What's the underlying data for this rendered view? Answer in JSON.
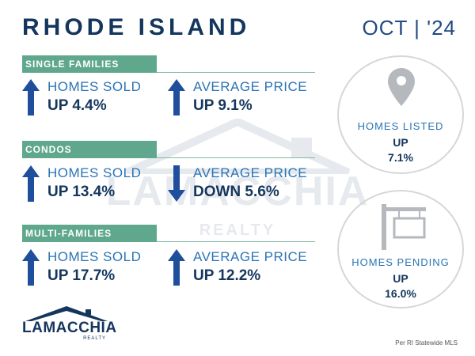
{
  "header": {
    "title": "RHODE ISLAND",
    "date": "OCT | '24"
  },
  "watermark": {
    "text": "LAMACCHIA",
    "sub": "REALTY"
  },
  "sections": [
    {
      "name": "SINGLE FAMILIES",
      "homes_sold": {
        "label": "HOMES SOLD",
        "value": "UP 4.4%",
        "direction": "up"
      },
      "avg_price": {
        "label": "AVERAGE PRICE",
        "value": "UP 9.1%",
        "direction": "up"
      }
    },
    {
      "name": "CONDOS",
      "homes_sold": {
        "label": "HOMES SOLD",
        "value": "UP 13.4%",
        "direction": "up"
      },
      "avg_price": {
        "label": "AVERAGE PRICE",
        "value": "DOWN 5.6%",
        "direction": "down"
      }
    },
    {
      "name": "MULTI-FAMILIES",
      "homes_sold": {
        "label": "HOMES SOLD",
        "value": "UP 17.7%",
        "direction": "up"
      },
      "avg_price": {
        "label": "AVERAGE PRICE",
        "value": "UP 12.2%",
        "direction": "up"
      }
    }
  ],
  "homes_listed": {
    "label": "HOMES LISTED",
    "direction": "UP",
    "value": "7.1%",
    "icon": "map-pin-icon"
  },
  "homes_pending": {
    "label": "HOMES PENDING",
    "direction": "UP",
    "value": "16.0%",
    "icon": "sale-sign-icon"
  },
  "logo": {
    "text": "LAMACCHIA",
    "sub": "REALTY"
  },
  "source": "Per RI Statewide MLS",
  "colors": {
    "navy": "#14365d",
    "blue": "#2a74b5",
    "green": "#5fa88d",
    "arrow": "#1f4f9c",
    "grey": "#b5b9bd"
  }
}
